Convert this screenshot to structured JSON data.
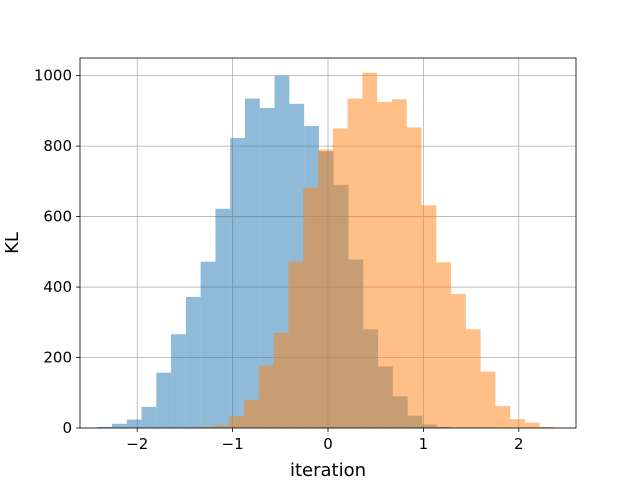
{
  "chart_data": {
    "type": "bar",
    "xlabel": "iteration",
    "ylabel": "KL",
    "xlim": [
      -2.6,
      2.6
    ],
    "ylim": [
      0,
      1050
    ],
    "grid": true,
    "x_ticks": [
      -2,
      -1,
      0,
      1,
      2
    ],
    "y_ticks": [
      0,
      200,
      400,
      600,
      800,
      1000
    ],
    "bin_width": 0.155,
    "series": [
      {
        "color": "#1f77b4",
        "opacity": 0.5,
        "bins": [
          {
            "x0": -2.42,
            "value": 3
          },
          {
            "x0": -2.265,
            "value": 12
          },
          {
            "x0": -2.11,
            "value": 24
          },
          {
            "x0": -1.955,
            "value": 60
          },
          {
            "x0": -1.8,
            "value": 157
          },
          {
            "x0": -1.645,
            "value": 266
          },
          {
            "x0": -1.49,
            "value": 372
          },
          {
            "x0": -1.335,
            "value": 472
          },
          {
            "x0": -1.18,
            "value": 622
          },
          {
            "x0": -1.025,
            "value": 823
          },
          {
            "x0": -0.87,
            "value": 935
          },
          {
            "x0": -0.715,
            "value": 908
          },
          {
            "x0": -0.56,
            "value": 1000
          },
          {
            "x0": -0.405,
            "value": 920
          },
          {
            "x0": -0.25,
            "value": 857
          },
          {
            "x0": -0.095,
            "value": 785
          },
          {
            "x0": 0.06,
            "value": 690
          },
          {
            "x0": 0.215,
            "value": 478
          },
          {
            "x0": 0.37,
            "value": 280
          },
          {
            "x0": 0.525,
            "value": 175
          },
          {
            "x0": 0.68,
            "value": 90
          },
          {
            "x0": 0.835,
            "value": 35
          },
          {
            "x0": 0.99,
            "value": 10
          },
          {
            "x0": 1.145,
            "value": 3
          }
        ]
      },
      {
        "color": "#ff7f0e",
        "opacity": 0.5,
        "bins": [
          {
            "x0": -1.345,
            "value": 3
          },
          {
            "x0": -1.19,
            "value": 8
          },
          {
            "x0": -1.035,
            "value": 33
          },
          {
            "x0": -0.88,
            "value": 80
          },
          {
            "x0": -0.725,
            "value": 177
          },
          {
            "x0": -0.57,
            "value": 270
          },
          {
            "x0": -0.415,
            "value": 472
          },
          {
            "x0": -0.26,
            "value": 682
          },
          {
            "x0": -0.105,
            "value": 790
          },
          {
            "x0": 0.05,
            "value": 850
          },
          {
            "x0": 0.205,
            "value": 935
          },
          {
            "x0": 0.36,
            "value": 1008
          },
          {
            "x0": 0.515,
            "value": 925
          },
          {
            "x0": 0.67,
            "value": 933
          },
          {
            "x0": 0.825,
            "value": 853
          },
          {
            "x0": 0.98,
            "value": 632
          },
          {
            "x0": 1.135,
            "value": 470
          },
          {
            "x0": 1.29,
            "value": 380
          },
          {
            "x0": 1.445,
            "value": 280
          },
          {
            "x0": 1.6,
            "value": 160
          },
          {
            "x0": 1.755,
            "value": 62
          },
          {
            "x0": 1.91,
            "value": 25
          },
          {
            "x0": 2.065,
            "value": 15
          },
          {
            "x0": 2.22,
            "value": 3
          }
        ]
      }
    ]
  }
}
